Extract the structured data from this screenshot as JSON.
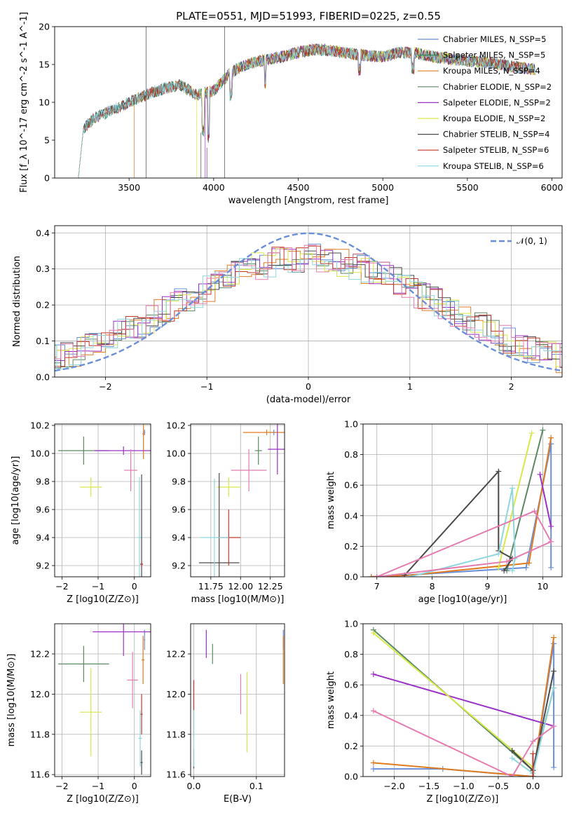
{
  "chart_data": [
    {
      "id": "spectrum",
      "type": "line",
      "title": "PLATE=0551, MJD=51993, FIBERID=0225, z=0.55",
      "xlabel": "wavelength [Angstrom, rest frame]",
      "ylabel": "Flux [f_λ 10^-17 erg cm^-2 s^-1 A^-1]",
      "xlim": [
        3060,
        6060
      ],
      "ylim": [
        0,
        20
      ],
      "xticks": [
        3500,
        4000,
        4500,
        5000,
        5500,
        6000
      ],
      "yticks": [
        0,
        5,
        10,
        15,
        20
      ],
      "grid": false,
      "legend_position": "top-right",
      "continuum": {
        "x": [
          3200,
          3230,
          3300,
          3400,
          3500,
          3600,
          3700,
          3800,
          3900,
          4000,
          4100,
          4200,
          4300,
          4400,
          4500,
          4600,
          4700,
          4800,
          4900,
          5000,
          5100,
          5200,
          5300,
          5400,
          5500,
          5600,
          5700,
          5800,
          5900
        ],
        "y": [
          0,
          6.5,
          8.0,
          9.0,
          10.0,
          11.0,
          11.8,
          12.3,
          11.0,
          11.5,
          14.0,
          15.0,
          15.6,
          16.0,
          16.6,
          17.0,
          16.8,
          16.5,
          16.2,
          16.0,
          16.6,
          16.5,
          16.0,
          15.7,
          15.5,
          15.3,
          15.0,
          14.6,
          14.3
        ]
      },
      "series": [
        {
          "name": "Chabrier MILES, N_SSP=5",
          "color": "#6a8fd8"
        },
        {
          "name": "Salpeter MILES, N_SSP=5",
          "color": "#2e8b57"
        },
        {
          "name": "Kroupa MILES, N_SSP=4",
          "color": "#e07b20"
        },
        {
          "name": "Chabrier ELODIE, N_SSP=2",
          "color": "#5a8a62"
        },
        {
          "name": "Salpeter ELODIE, N_SSP=2",
          "color": "#9b30c8"
        },
        {
          "name": "Kroupa ELODIE, N_SSP=2",
          "color": "#d8e84a"
        },
        {
          "name": "Chabrier STELIB, N_SSP=4",
          "color": "#4a4a4a"
        },
        {
          "name": "Salpeter STELIB, N_SSP=6",
          "color": "#c0392b"
        },
        {
          "name": "Kroupa STELIB, N_SSP=6",
          "color": "#8fd6de"
        }
      ]
    },
    {
      "id": "residuals",
      "type": "line",
      "xlabel": "(data-model)/error",
      "ylabel": "Normed distribution",
      "xlim": [
        -2.5,
        2.5
      ],
      "ylim": [
        0,
        0.42
      ],
      "xticks": [
        -2,
        -1,
        0,
        1,
        2
      ],
      "yticks": [
        0.0,
        0.1,
        0.2,
        0.3,
        0.4
      ],
      "grid": true,
      "legend": "𝒩(0, 1)",
      "legend_position": "top-right",
      "gaussian": {
        "mean": 0,
        "sigma": 1,
        "color": "#6a8fd8"
      },
      "histogram_colors": [
        "#6a8fd8",
        "#e07b20",
        "#5a8a62",
        "#9b30c8",
        "#d8e84a",
        "#4a4a4a",
        "#c0392b",
        "#8fd6de",
        "#e57cb0"
      ]
    },
    {
      "id": "age_vs_Z",
      "type": "scatter",
      "xlabel": "Z [log10(Z/Z⊙)]",
      "ylabel": "age  [log10(age/yr)]",
      "xlim": [
        -2.2,
        0.45
      ],
      "ylim": [
        9.12,
        10.21
      ],
      "xticks": [
        -2,
        -1,
        0
      ],
      "yticks": [
        9.2,
        9.4,
        9.6,
        9.8,
        10.0,
        10.2
      ],
      "grid": true,
      "points": [
        {
          "x": 0.28,
          "y": 10.15,
          "xerr": 0.02,
          "yerr": 0.02,
          "color": "#6a8fd8"
        },
        {
          "x": 0.25,
          "y": 10.14,
          "xerr": 0.03,
          "yerr": 0.18,
          "color": "#e07b20"
        },
        {
          "x": -1.4,
          "y": 10.02,
          "xerr": 0.7,
          "yerr": 0.1,
          "color": "#5a8a62"
        },
        {
          "x": -0.3,
          "y": 10.02,
          "xerr": 0.8,
          "yerr": 0.03,
          "color": "#9b30c8"
        },
        {
          "x": -1.2,
          "y": 9.76,
          "xerr": 0.3,
          "yerr": 0.07,
          "color": "#d8e84a"
        },
        {
          "x": 0.2,
          "y": 9.21,
          "xerr": 0.04,
          "yerr": 0.64,
          "color": "#4a4a4a"
        },
        {
          "x": 0.2,
          "y": 9.21,
          "xerr": 0.02,
          "yerr": 0.02,
          "color": "#c0392b"
        },
        {
          "x": 0.14,
          "y": 9.4,
          "xerr": 0.05,
          "yerr": 0.43,
          "color": "#8fd6de"
        },
        {
          "x": -0.1,
          "y": 9.88,
          "xerr": 0.18,
          "yerr": 0.15,
          "color": "#e57cb0"
        }
      ]
    },
    {
      "id": "age_vs_mass",
      "type": "scatter",
      "xlabel": "mass [log10(M/M⊙)]",
      "ylabel": "",
      "xlim": [
        11.58,
        12.37
      ],
      "ylim": [
        9.12,
        10.21
      ],
      "xticks": [
        11.75,
        12.0,
        12.25
      ],
      "xticklabels": [
        "11.75",
        "12.00",
        "12.25"
      ],
      "yticks": [
        9.2,
        9.4,
        9.6,
        9.8,
        10.0,
        10.2
      ],
      "grid": true,
      "points": [
        {
          "x": 12.28,
          "y": 10.15,
          "xerr": 0.02,
          "yerr": 0.02,
          "color": "#6a8fd8"
        },
        {
          "x": 12.22,
          "y": 10.15,
          "xerr": 0.2,
          "yerr": 0.02,
          "color": "#e07b20"
        },
        {
          "x": 12.15,
          "y": 10.02,
          "xerr": 0.03,
          "yerr": 0.1,
          "color": "#5a8a62"
        },
        {
          "x": 12.31,
          "y": 10.03,
          "xerr": 0.08,
          "yerr": 0.18,
          "color": "#9b30c8"
        },
        {
          "x": 11.9,
          "y": 9.76,
          "xerr": 0.1,
          "yerr": 0.07,
          "color": "#d8e84a"
        },
        {
          "x": 11.82,
          "y": 9.22,
          "xerr": 0.17,
          "yerr": 0.64,
          "color": "#4a4a4a"
        },
        {
          "x": 11.9,
          "y": 9.4,
          "xerr": 0.1,
          "yerr": 0.2,
          "color": "#c0392b"
        },
        {
          "x": 11.78,
          "y": 9.4,
          "xerr": 0.12,
          "yerr": 0.42,
          "color": "#8fd6de"
        },
        {
          "x": 12.07,
          "y": 9.88,
          "xerr": 0.15,
          "yerr": 0.15,
          "color": "#e57cb0"
        }
      ]
    },
    {
      "id": "massweight_vs_age",
      "type": "line",
      "xlabel": "age  [log10(age/yr)]",
      "ylabel": "mass weight",
      "xlim": [
        6.75,
        10.35
      ],
      "ylim": [
        0,
        1
      ],
      "xticks": [
        7,
        8,
        9,
        10
      ],
      "yticks": [
        0.0,
        0.2,
        0.4,
        0.6,
        0.8,
        1.0
      ],
      "grid": true,
      "series": [
        {
          "color": "#6a8fd8",
          "x": [
            6.9,
            7.5,
            9.7,
            10.15,
            10.15
          ],
          "y": [
            0.0,
            0.01,
            0.06,
            0.87,
            0.06
          ]
        },
        {
          "color": "#e07b20",
          "x": [
            6.9,
            7.6,
            9.75,
            10.15
          ],
          "y": [
            0.0,
            0.01,
            0.09,
            0.91
          ]
        },
        {
          "color": "#5a8a62",
          "x": [
            9.35,
            10.0
          ],
          "y": [
            0.04,
            0.96
          ]
        },
        {
          "color": "#9b30c8",
          "x": [
            9.95,
            10.15
          ],
          "y": [
            0.67,
            0.33
          ]
        },
        {
          "color": "#d8e84a",
          "x": [
            9.2,
            9.8
          ],
          "y": [
            0.06,
            0.94
          ]
        },
        {
          "color": "#4a4a4a",
          "x": [
            7.5,
            9.2,
            9.2,
            9.45,
            9.3
          ],
          "y": [
            0.01,
            0.69,
            0.17,
            0.12,
            0.04
          ]
        },
        {
          "color": "#8fd6de",
          "x": [
            7.6,
            9.2,
            9.45,
            9.5,
            9.45
          ],
          "y": [
            0.0,
            0.15,
            0.58,
            0.12,
            0.04
          ]
        },
        {
          "color": "#e57cb0",
          "x": [
            7.0,
            9.85,
            10.15,
            9.35,
            7.0
          ],
          "y": [
            0.0,
            0.43,
            0.23,
            0.1,
            0.0
          ]
        }
      ]
    },
    {
      "id": "mass_vs_Z",
      "type": "scatter",
      "xlabel": "Z [log10(Z/Z⊙)]",
      "ylabel": "mass [log10(M/M⊙)]",
      "xlim": [
        -2.2,
        0.45
      ],
      "ylim": [
        11.59,
        12.35
      ],
      "xticks": [
        -2,
        -1,
        0
      ],
      "yticks": [
        11.6,
        11.8,
        12.0,
        12.2
      ],
      "grid": true,
      "points": [
        {
          "x": 0.28,
          "y": 12.27,
          "xerr": 0.02,
          "yerr": 0.05,
          "color": "#6a8fd8"
        },
        {
          "x": 0.24,
          "y": 12.17,
          "xerr": 0.04,
          "yerr": 0.12,
          "color": "#e07b20"
        },
        {
          "x": -1.4,
          "y": 12.15,
          "xerr": 0.7,
          "yerr": 0.09,
          "color": "#5a8a62"
        },
        {
          "x": -0.3,
          "y": 12.31,
          "xerr": 0.85,
          "yerr": 0.12,
          "color": "#9b30c8"
        },
        {
          "x": -1.2,
          "y": 11.91,
          "xerr": 0.3,
          "yerr": 0.22,
          "color": "#d8e84a"
        },
        {
          "x": 0.2,
          "y": 11.66,
          "xerr": 0.03,
          "yerr": 0.06,
          "color": "#4a4a4a"
        },
        {
          "x": 0.2,
          "y": 11.9,
          "xerr": 0.03,
          "yerr": 0.1,
          "color": "#c0392b"
        },
        {
          "x": 0.16,
          "y": 11.78,
          "xerr": 0.05,
          "yerr": 0.14,
          "color": "#8fd6de"
        },
        {
          "x": -0.05,
          "y": 12.07,
          "xerr": 0.15,
          "yerr": 0.14,
          "color": "#e57cb0"
        }
      ]
    },
    {
      "id": "mass_vs_ebv",
      "type": "scatter",
      "xlabel": "E(B-V)",
      "ylabel": "",
      "xlim": [
        -0.005,
        0.145
      ],
      "ylim": [
        11.59,
        12.35
      ],
      "xticks": [
        0.0,
        0.1
      ],
      "yticks": [
        11.6,
        11.8,
        12.0,
        12.2
      ],
      "grid": true,
      "points": [
        {
          "x": 0.143,
          "y": 12.27,
          "xerr": 0,
          "yerr": 0.05,
          "color": "#6a8fd8"
        },
        {
          "x": 0.143,
          "y": 12.17,
          "xerr": 0,
          "yerr": 0.12,
          "color": "#e07b20"
        },
        {
          "x": 0.03,
          "y": 12.2,
          "xerr": 0,
          "yerr": 0.05,
          "color": "#5a8a62"
        },
        {
          "x": 0.02,
          "y": 12.25,
          "xerr": 0,
          "yerr": 0.07,
          "color": "#9b30c8"
        },
        {
          "x": 0.085,
          "y": 11.91,
          "xerr": 0,
          "yerr": 0.2,
          "color": "#d8e84a"
        },
        {
          "x": 0.0,
          "y": 11.68,
          "xerr": 0,
          "yerr": 0.05,
          "color": "#4a4a4a"
        },
        {
          "x": 0.0,
          "y": 11.93,
          "xerr": 0,
          "yerr": 0.14,
          "color": "#c0392b"
        },
        {
          "x": 0.0,
          "y": 11.78,
          "xerr": 0,
          "yerr": 0.14,
          "color": "#8fd6de"
        },
        {
          "x": 0.075,
          "y": 12.0,
          "xerr": 0,
          "yerr": 0.1,
          "color": "#e57cb0"
        }
      ]
    },
    {
      "id": "massweight_vs_Z",
      "type": "line",
      "xlabel": "Z [log10(Z/Z⊙)]",
      "ylabel": "mass weight",
      "xlim": [
        -2.45,
        0.42
      ],
      "ylim": [
        0,
        1
      ],
      "xticks": [
        -2.0,
        -1.5,
        -1.0,
        -0.5,
        0.0
      ],
      "xticklabels": [
        "−2.0",
        "−1.5",
        "−1.0",
        "−0.5",
        "0.0"
      ],
      "yticks": [
        0.0,
        0.2,
        0.4,
        0.6,
        0.8,
        1.0
      ],
      "grid": true,
      "series": [
        {
          "color": "#6a8fd8",
          "x": [
            -2.3,
            -1.3,
            0.0,
            0.3,
            0.3
          ],
          "y": [
            0.05,
            0.05,
            0.0,
            0.87,
            0.06
          ]
        },
        {
          "color": "#e07b20",
          "x": [
            -2.3,
            0.0,
            0.3
          ],
          "y": [
            0.09,
            0.0,
            0.91
          ]
        },
        {
          "color": "#5a8a62",
          "x": [
            -2.3,
            0.0,
            0.3
          ],
          "y": [
            0.96,
            0.04,
            0.58
          ]
        },
        {
          "color": "#9b30c8",
          "x": [
            -2.3,
            0.3
          ],
          "y": [
            0.67,
            0.33
          ]
        },
        {
          "color": "#d8e84a",
          "x": [
            -2.3,
            0.0
          ],
          "y": [
            0.94,
            0.06
          ]
        },
        {
          "color": "#4a4a4a",
          "x": [
            -0.3,
            0.0,
            0.3
          ],
          "y": [
            0.17,
            0.04,
            0.69
          ]
        },
        {
          "color": "#8fd6de",
          "x": [
            -0.3,
            0.0,
            0.3
          ],
          "y": [
            0.12,
            0.02,
            0.58
          ]
        },
        {
          "color": "#e57cb0",
          "x": [
            -2.3,
            -0.3,
            0.0,
            0.3
          ],
          "y": [
            0.43,
            0.0,
            0.23,
            0.33
          ]
        },
        {
          "color": "#c0392b",
          "x": [
            0.0,
            0.0
          ],
          "y": [
            0.15,
            0.0
          ]
        }
      ]
    }
  ]
}
